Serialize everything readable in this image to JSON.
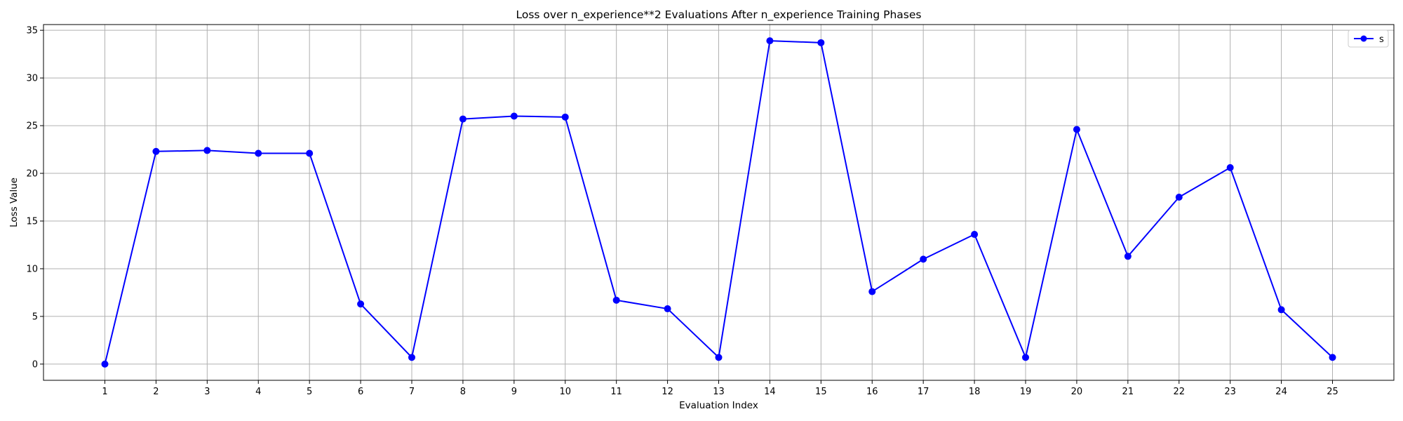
{
  "chart_data": {
    "type": "line",
    "title": "Loss over n_experience**2 Evaluations After n_experience Training Phases",
    "xlabel": "Evaluation Index",
    "ylabel": "Loss Value",
    "x": [
      1,
      2,
      3,
      4,
      5,
      6,
      7,
      8,
      9,
      10,
      11,
      12,
      13,
      14,
      15,
      16,
      17,
      18,
      19,
      20,
      21,
      22,
      23,
      24,
      25
    ],
    "xlim": [
      -0.2,
      26.2
    ],
    "ylim": [
      -1.7,
      35.6
    ],
    "yticks": [
      0,
      5,
      10,
      15,
      20,
      25,
      30,
      35
    ],
    "grid": true,
    "legend_position": "top-right",
    "series": [
      {
        "name": "s",
        "color": "#0000ff",
        "marker": "circle",
        "values": [
          0.0,
          22.3,
          22.4,
          22.1,
          22.1,
          6.3,
          0.7,
          25.7,
          26.0,
          25.9,
          6.7,
          5.8,
          0.7,
          33.9,
          33.7,
          7.6,
          11.0,
          13.6,
          0.7,
          24.6,
          11.3,
          17.5,
          20.6,
          5.7,
          0.7
        ]
      }
    ]
  }
}
